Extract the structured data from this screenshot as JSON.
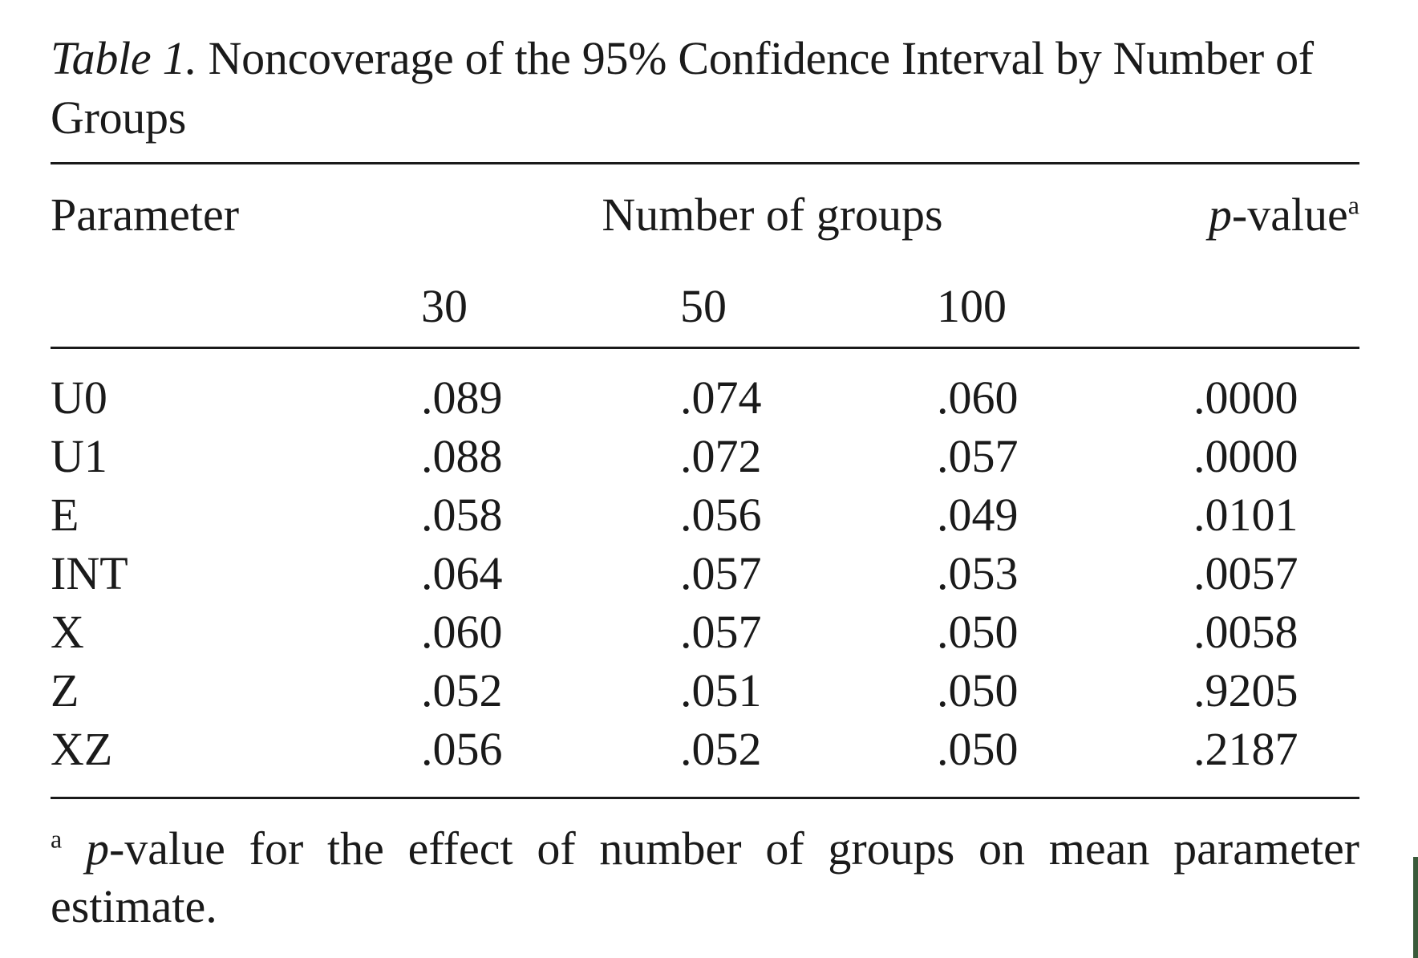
{
  "caption": {
    "label": "Table 1.",
    "text": "Noncoverage of the 95% Confidence Interval by Number of Groups"
  },
  "table": {
    "header": {
      "parameter": "Parameter",
      "group_span": "Number of groups",
      "pvalue_italic": "p",
      "pvalue_rest": "-value",
      "pvalue_sup": "a"
    },
    "groups": [
      "30",
      "50",
      "100"
    ],
    "rows": [
      {
        "param": "U0",
        "g30": ".089",
        "g50": ".074",
        "g100": ".060",
        "p": ".0000"
      },
      {
        "param": "U1",
        "g30": ".088",
        "g50": ".072",
        "g100": ".057",
        "p": ".0000"
      },
      {
        "param": "E",
        "g30": ".058",
        "g50": ".056",
        "g100": ".049",
        "p": ".0101"
      },
      {
        "param": "INT",
        "g30": ".064",
        "g50": ".057",
        "g100": ".053",
        "p": ".0057"
      },
      {
        "param": "X",
        "g30": ".060",
        "g50": ".057",
        "g100": ".050",
        "p": ".0058"
      },
      {
        "param": "Z",
        "g30": ".052",
        "g50": ".051",
        "g100": ".050",
        "p": ".9205"
      },
      {
        "param": "XZ",
        "g30": ".056",
        "g50": ".052",
        "g100": ".050",
        "p": ".2187"
      }
    ]
  },
  "footnote": {
    "marker": "a",
    "italic": "p",
    "text": "-value for the effect of number of groups on mean parameter estimate."
  }
}
